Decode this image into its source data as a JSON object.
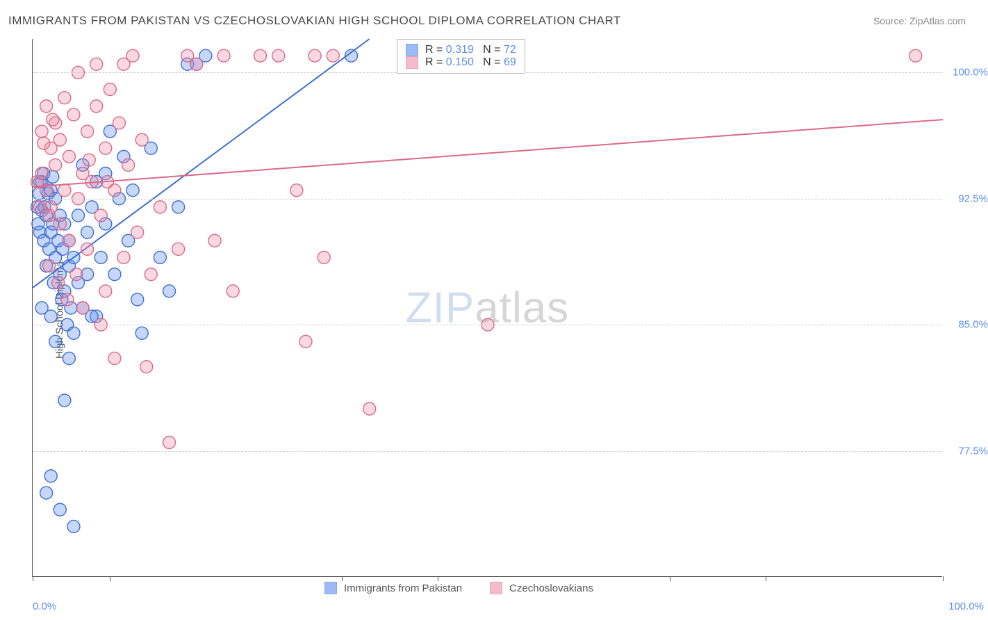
{
  "title": "IMMIGRANTS FROM PAKISTAN VS CZECHOSLOVAKIAN HIGH SCHOOL DIPLOMA CORRELATION CHART",
  "source_label": "Source: ZipAtlas.com",
  "y_axis_label": "High School Diploma",
  "watermark_a": "ZIP",
  "watermark_b": "atlas",
  "chart": {
    "type": "scatter",
    "background_color": "#ffffff",
    "grid_color": "#cccccc",
    "axis_color": "#555555",
    "xlim": [
      0,
      100
    ],
    "ylim": [
      70,
      102
    ],
    "x_tick_positions": [
      0,
      8.5,
      34,
      44.5,
      70,
      80.5,
      100
    ],
    "x_tick_labels": {
      "0": "0.0%",
      "100": "100.0%"
    },
    "y_ticks": [
      77.5,
      85.0,
      92.5,
      100.0
    ],
    "y_tick_labels": [
      "77.5%",
      "85.0%",
      "92.5%",
      "100.0%"
    ],
    "marker_radius": 9,
    "marker_stroke_width": 1.4,
    "marker_fill_opacity": 0.35,
    "regression_line_width": 2,
    "series": [
      {
        "key": "pakistan",
        "label": "Immigrants from Pakistan",
        "color": "#5b8def",
        "stroke": "#3d6fd1",
        "r_value": "0.319",
        "n_value": "72",
        "regression": {
          "x1": 0,
          "y1": 87.2,
          "x2": 37,
          "y2": 102
        },
        "points": [
          [
            0.5,
            92.0
          ],
          [
            0.6,
            91.0
          ],
          [
            0.7,
            92.8
          ],
          [
            0.8,
            90.5
          ],
          [
            1.0,
            91.8
          ],
          [
            1.0,
            93.5
          ],
          [
            1.2,
            90.0
          ],
          [
            1.3,
            92.0
          ],
          [
            1.5,
            88.5
          ],
          [
            1.5,
            91.5
          ],
          [
            1.7,
            92.8
          ],
          [
            1.8,
            89.5
          ],
          [
            2.0,
            90.5
          ],
          [
            2.0,
            93.0
          ],
          [
            2.0,
            85.5
          ],
          [
            2.2,
            91.0
          ],
          [
            2.3,
            87.5
          ],
          [
            2.5,
            89.0
          ],
          [
            2.5,
            92.5
          ],
          [
            2.8,
            90.0
          ],
          [
            3.0,
            88.0
          ],
          [
            3.0,
            91.5
          ],
          [
            3.2,
            86.5
          ],
          [
            3.3,
            89.5
          ],
          [
            3.5,
            87.0
          ],
          [
            3.5,
            91.0
          ],
          [
            3.8,
            85.0
          ],
          [
            4.0,
            88.5
          ],
          [
            4.0,
            90.0
          ],
          [
            4.2,
            86.0
          ],
          [
            4.5,
            89.0
          ],
          [
            4.5,
            84.5
          ],
          [
            5.0,
            87.5
          ],
          [
            5.0,
            91.5
          ],
          [
            5.5,
            86.0
          ],
          [
            5.5,
            94.5
          ],
          [
            6.0,
            88.0
          ],
          [
            6.0,
            90.5
          ],
          [
            6.5,
            92.0
          ],
          [
            7.0,
            85.5
          ],
          [
            7.0,
            93.5
          ],
          [
            7.5,
            89.0
          ],
          [
            8.0,
            91.0
          ],
          [
            8.0,
            94.0
          ],
          [
            8.5,
            96.5
          ],
          [
            9.0,
            88.0
          ],
          [
            9.5,
            92.5
          ],
          [
            10.0,
            95.0
          ],
          [
            10.5,
            90.0
          ],
          [
            11.0,
            93.0
          ],
          [
            11.5,
            86.5
          ],
          [
            12.0,
            84.5
          ],
          [
            13.0,
            95.5
          ],
          [
            14.0,
            89.0
          ],
          [
            15.0,
            87.0
          ],
          [
            16.0,
            92.0
          ],
          [
            17.0,
            100.5
          ],
          [
            18.0,
            100.5
          ],
          [
            19.0,
            101.0
          ],
          [
            1.5,
            75.0
          ],
          [
            2.0,
            76.0
          ],
          [
            3.0,
            74.0
          ],
          [
            4.5,
            73.0
          ],
          [
            3.5,
            80.5
          ],
          [
            2.5,
            84.0
          ],
          [
            4.0,
            83.0
          ],
          [
            6.5,
            85.5
          ],
          [
            1.0,
            86.0
          ],
          [
            0.8,
            93.5
          ],
          [
            1.2,
            94.0
          ],
          [
            2.2,
            93.8
          ],
          [
            35.0,
            101.0
          ]
        ]
      },
      {
        "key": "czech",
        "label": "Czechoslovakians",
        "color": "#f08fa8",
        "stroke": "#d96b87",
        "r_value": "0.150",
        "n_value": "69",
        "regression": {
          "x1": 0,
          "y1": 93.2,
          "x2": 100,
          "y2": 97.2
        },
        "points": [
          [
            0.5,
            93.5
          ],
          [
            1.0,
            94.0
          ],
          [
            1.0,
            96.5
          ],
          [
            1.5,
            93.0
          ],
          [
            1.5,
            98.0
          ],
          [
            2.0,
            92.0
          ],
          [
            2.0,
            95.5
          ],
          [
            2.5,
            94.5
          ],
          [
            2.5,
            97.0
          ],
          [
            3.0,
            91.0
          ],
          [
            3.0,
            96.0
          ],
          [
            3.5,
            93.0
          ],
          [
            3.5,
            98.5
          ],
          [
            4.0,
            90.0
          ],
          [
            4.0,
            95.0
          ],
          [
            4.5,
            97.5
          ],
          [
            5.0,
            92.5
          ],
          [
            5.0,
            100.0
          ],
          [
            5.5,
            94.0
          ],
          [
            6.0,
            96.5
          ],
          [
            6.0,
            89.5
          ],
          [
            6.5,
            93.5
          ],
          [
            7.0,
            98.0
          ],
          [
            7.0,
            100.5
          ],
          [
            7.5,
            91.5
          ],
          [
            8.0,
            95.5
          ],
          [
            8.0,
            87.0
          ],
          [
            8.5,
            99.0
          ],
          [
            9.0,
            93.0
          ],
          [
            9.5,
            97.0
          ],
          [
            10.0,
            100.5
          ],
          [
            10.0,
            89.0
          ],
          [
            10.5,
            94.5
          ],
          [
            11.0,
            101.0
          ],
          [
            11.5,
            90.5
          ],
          [
            12.0,
            96.0
          ],
          [
            12.5,
            82.5
          ],
          [
            13.0,
            88.0
          ],
          [
            14.0,
            92.0
          ],
          [
            15.0,
            78.0
          ],
          [
            16.0,
            89.5
          ],
          [
            17.0,
            101.0
          ],
          [
            18.0,
            100.5
          ],
          [
            20.0,
            90.0
          ],
          [
            21.0,
            101.0
          ],
          [
            22.0,
            87.0
          ],
          [
            25.0,
            101.0
          ],
          [
            27.0,
            101.0
          ],
          [
            29.0,
            93.0
          ],
          [
            30.0,
            84.0
          ],
          [
            31.0,
            101.0
          ],
          [
            32.0,
            89.0
          ],
          [
            33.0,
            101.0
          ],
          [
            37.0,
            80.0
          ],
          [
            50.0,
            85.0
          ],
          [
            97.0,
            101.0
          ],
          [
            5.5,
            86.0
          ],
          [
            7.5,
            85.0
          ],
          [
            9.0,
            83.0
          ],
          [
            1.8,
            88.5
          ],
          [
            2.8,
            87.5
          ],
          [
            3.8,
            86.5
          ],
          [
            4.8,
            88.0
          ],
          [
            1.2,
            95.8
          ],
          [
            2.2,
            97.2
          ],
          [
            0.8,
            92.0
          ],
          [
            1.8,
            91.5
          ],
          [
            6.2,
            94.8
          ],
          [
            8.2,
            93.5
          ]
        ]
      }
    ]
  },
  "legend_top": {
    "r_label": "R =",
    "n_label": "N ="
  },
  "text_color": "#555555",
  "tick_label_color": "#5b8def"
}
